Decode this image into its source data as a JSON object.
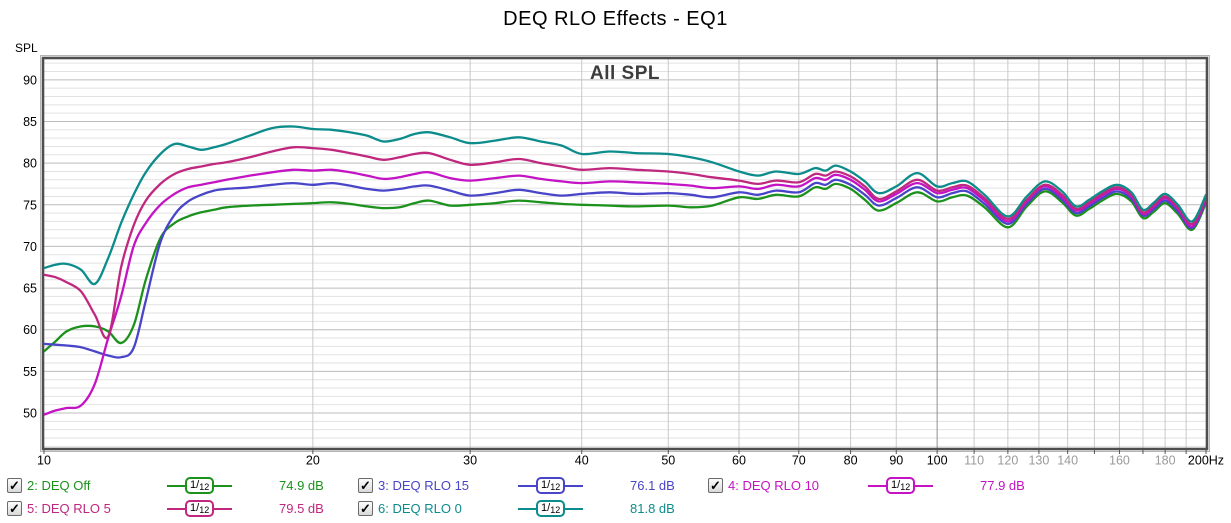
{
  "title": "DEQ RLO Effects - EQ1",
  "chart": {
    "y_axis_title": "SPL",
    "overlay_title": "All SPL"
  },
  "legend": {
    "smoothing": "1/12",
    "checkmark": "✓"
  },
  "chart_data": {
    "type": "line",
    "title": "All SPL",
    "ylabel": "SPL",
    "x_unit": "Hz",
    "x_scale": "log",
    "xlim": [
      10,
      200
    ],
    "ylim": [
      45.8,
      92.5
    ],
    "grid": "on",
    "legend_position": "bottom",
    "y_ticks": [
      50,
      55,
      60,
      65,
      70,
      75,
      80,
      85,
      90
    ],
    "x_tick_labels": [
      {
        "f": 10,
        "text": "10",
        "major": true
      },
      {
        "f": 20,
        "text": "20",
        "major": true
      },
      {
        "f": 30,
        "text": "30",
        "major": true
      },
      {
        "f": 40,
        "text": "40",
        "major": true
      },
      {
        "f": 50,
        "text": "50",
        "major": true
      },
      {
        "f": 60,
        "text": "60",
        "major": true
      },
      {
        "f": 70,
        "text": "70",
        "major": true
      },
      {
        "f": 80,
        "text": "80",
        "major": true
      },
      {
        "f": 90,
        "text": "90",
        "major": true
      },
      {
        "f": 100,
        "text": "100",
        "major": true
      },
      {
        "f": 110,
        "text": "110",
        "major": false
      },
      {
        "f": 120,
        "text": "120",
        "major": false
      },
      {
        "f": 130,
        "text": "130",
        "major": false
      },
      {
        "f": 140,
        "text": "140",
        "major": false
      },
      {
        "f": 160,
        "text": "160",
        "major": false
      },
      {
        "f": 180,
        "text": "180",
        "major": false
      },
      {
        "f": 200,
        "text": "200Hz",
        "major": true
      }
    ],
    "v_gridlines_hz": [
      20,
      30,
      40,
      50,
      60,
      70,
      80,
      90,
      100,
      110,
      120,
      130,
      140,
      150,
      160,
      170,
      180,
      190
    ],
    "v_dark_gridline_hz": 100,
    "x": [
      10,
      10.3,
      10.6,
      11,
      11.4,
      11.8,
      12.2,
      12.6,
      13,
      13.5,
      14,
      14.5,
      15,
      15.5,
      16,
      17,
      18,
      19,
      20,
      21,
      22,
      23,
      24,
      25,
      26,
      27,
      28.5,
      30,
      32,
      34,
      36,
      38,
      40,
      43,
      46,
      50,
      53,
      56,
      60,
      63,
      66,
      70,
      73,
      75,
      77,
      80,
      83,
      86,
      90,
      95,
      100,
      104,
      108,
      113,
      120,
      126,
      132,
      138,
      143,
      148,
      153,
      159,
      165,
      170,
      175,
      180,
      186,
      193,
      200
    ],
    "series": [
      {
        "label": "2: DEQ Off",
        "color": "#1c921c",
        "avg": "74.9 dB",
        "checked": true,
        "legend_row": 0,
        "legend_col": 0,
        "values": [
          57.4,
          58.6,
          59.8,
          60.4,
          60.4,
          59.8,
          58.4,
          60.5,
          66.0,
          71.0,
          72.8,
          73.6,
          74.1,
          74.4,
          74.7,
          74.9,
          75.0,
          75.1,
          75.2,
          75.3,
          75.1,
          74.8,
          74.6,
          74.7,
          75.2,
          75.5,
          74.9,
          75.0,
          75.2,
          75.5,
          75.3,
          75.1,
          75.0,
          74.9,
          74.8,
          74.9,
          74.7,
          74.9,
          75.9,
          75.7,
          76.2,
          76.0,
          77.1,
          76.9,
          77.5,
          76.9,
          75.6,
          74.3,
          75.2,
          76.5,
          75.4,
          75.9,
          76.1,
          74.7,
          72.3,
          74.8,
          76.6,
          75.3,
          73.7,
          74.5,
          75.5,
          76.3,
          75.4,
          73.4,
          74.2,
          75.2,
          73.9,
          72.0,
          75.2
        ]
      },
      {
        "label": "3: DEQ RLO 15",
        "color": "#4945c8",
        "avg": "76.1 dB",
        "checked": true,
        "legend_row": 0,
        "legend_col": 1,
        "values": [
          58.3,
          58.2,
          58.1,
          57.9,
          57.4,
          56.9,
          56.7,
          57.8,
          63.5,
          70.5,
          73.8,
          75.4,
          76.2,
          76.7,
          76.9,
          77.1,
          77.4,
          77.6,
          77.4,
          77.6,
          77.3,
          76.9,
          76.7,
          76.9,
          77.2,
          77.3,
          76.7,
          76.1,
          76.4,
          76.8,
          76.4,
          76.1,
          76.3,
          76.5,
          76.3,
          76.4,
          76.2,
          75.9,
          76.5,
          76.2,
          76.7,
          76.5,
          77.6,
          77.4,
          78.0,
          77.4,
          76.2,
          74.9,
          75.8,
          77.1,
          75.9,
          76.4,
          76.6,
          75.1,
          72.7,
          75.1,
          76.9,
          75.6,
          74.0,
          74.8,
          75.8,
          76.6,
          75.7,
          73.7,
          74.5,
          75.5,
          74.2,
          72.2,
          75.5
        ]
      },
      {
        "label": "4: DEQ RLO 10",
        "color": "#c413c4",
        "avg": "77.9 dB",
        "checked": true,
        "legend_row": 0,
        "legend_col": 2,
        "values": [
          49.8,
          50.3,
          50.6,
          50.9,
          53.5,
          59.0,
          64.0,
          70.0,
          72.8,
          75.0,
          76.3,
          77.1,
          77.4,
          77.7,
          78.0,
          78.5,
          78.9,
          79.2,
          79.1,
          79.2,
          78.9,
          78.5,
          78.1,
          78.3,
          78.7,
          78.9,
          78.2,
          77.9,
          78.2,
          78.5,
          78.1,
          77.8,
          77.6,
          77.8,
          77.7,
          77.5,
          77.3,
          77.0,
          77.2,
          76.9,
          77.4,
          77.2,
          78.2,
          78.0,
          78.6,
          78.0,
          76.8,
          75.4,
          76.3,
          77.6,
          76.4,
          76.8,
          77.0,
          75.5,
          73.0,
          75.4,
          77.2,
          75.9,
          74.3,
          75.1,
          76.1,
          76.9,
          76.0,
          73.9,
          74.8,
          75.8,
          74.5,
          72.4,
          75.7
        ]
      },
      {
        "label": "5: DEQ RLO 5",
        "color": "#c0277e",
        "avg": "79.5 dB",
        "checked": true,
        "legend_row": 1,
        "legend_col": 0,
        "values": [
          66.6,
          66.3,
          65.7,
          64.6,
          61.8,
          59.2,
          67.5,
          72.5,
          75.5,
          77.5,
          78.7,
          79.3,
          79.6,
          79.9,
          80.1,
          80.7,
          81.4,
          81.9,
          81.8,
          81.6,
          81.2,
          80.8,
          80.4,
          80.7,
          81.1,
          81.2,
          80.4,
          79.8,
          80.1,
          80.5,
          80.0,
          79.6,
          79.2,
          79.4,
          79.2,
          79.0,
          78.7,
          78.3,
          77.9,
          77.5,
          77.9,
          77.7,
          78.7,
          78.5,
          79.0,
          78.4,
          77.2,
          75.7,
          76.6,
          78.0,
          76.7,
          77.1,
          77.3,
          75.8,
          73.3,
          75.6,
          77.4,
          76.2,
          74.5,
          75.3,
          76.3,
          77.1,
          76.2,
          74.1,
          75.0,
          76.0,
          74.7,
          72.7,
          75.9
        ]
      },
      {
        "label": "6: DEQ RLO 0",
        "color": "#0d8c8c",
        "avg": "81.8 dB",
        "checked": true,
        "legend_row": 1,
        "legend_col": 1,
        "values": [
          67.4,
          67.8,
          67.9,
          67.2,
          65.5,
          68.6,
          72.8,
          76.2,
          78.9,
          81.1,
          82.3,
          82.0,
          81.6,
          81.9,
          82.3,
          83.3,
          84.2,
          84.4,
          84.1,
          84.0,
          83.7,
          83.3,
          82.6,
          82.9,
          83.5,
          83.7,
          83.1,
          82.4,
          82.7,
          83.1,
          82.6,
          82.1,
          81.1,
          81.4,
          81.2,
          81.1,
          80.7,
          80.1,
          79.0,
          78.5,
          79.0,
          78.7,
          79.4,
          79.1,
          79.7,
          79.0,
          77.8,
          76.4,
          77.2,
          78.8,
          77.2,
          77.6,
          77.8,
          76.2,
          73.6,
          76.0,
          77.8,
          76.6,
          74.8,
          75.6,
          76.6,
          77.4,
          76.5,
          74.4,
          75.3,
          76.3,
          75.0,
          73.0,
          76.2
        ]
      }
    ]
  }
}
